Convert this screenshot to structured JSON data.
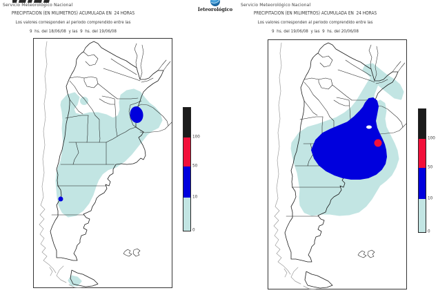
{
  "branding": {
    "center_logo_text": "Ieteorológico",
    "globe_icon_color": "#2f8fd0"
  },
  "panels": [
    {
      "agency": "Servicio Meteorológico Nacional",
      "title": "PRECIPITACION (EN MILIMETROS) ACUMULADA EN  24 HORAS",
      "subtitle": "Los valores corresponden al periodo comprendido entre las",
      "period": "9  hs. del 18/06/08  y las  9  hs. del 19/06/08"
    },
    {
      "agency": "Servicio Meteorológico Nacional",
      "title": "PRECIPITACION (EN MILIMETROS) ACUMULADA EN  24 HORAS",
      "subtitle": "Los valores corresponden al periodo comprendido entre las",
      "period": "9  hs. del 19/06/08  y las  9  hs. del 20/06/08"
    }
  ],
  "colorbar": {
    "tick_labels": [
      "100",
      "50",
      "10",
      "0"
    ],
    "segments": [
      {
        "id": "above-100",
        "color": "#1b1b1b"
      },
      {
        "id": "50-100",
        "color": "#f2103a"
      },
      {
        "id": "10-50",
        "color": "#0000dd"
      },
      {
        "id": "0-10",
        "color": "#c2e5e3"
      }
    ]
  }
}
